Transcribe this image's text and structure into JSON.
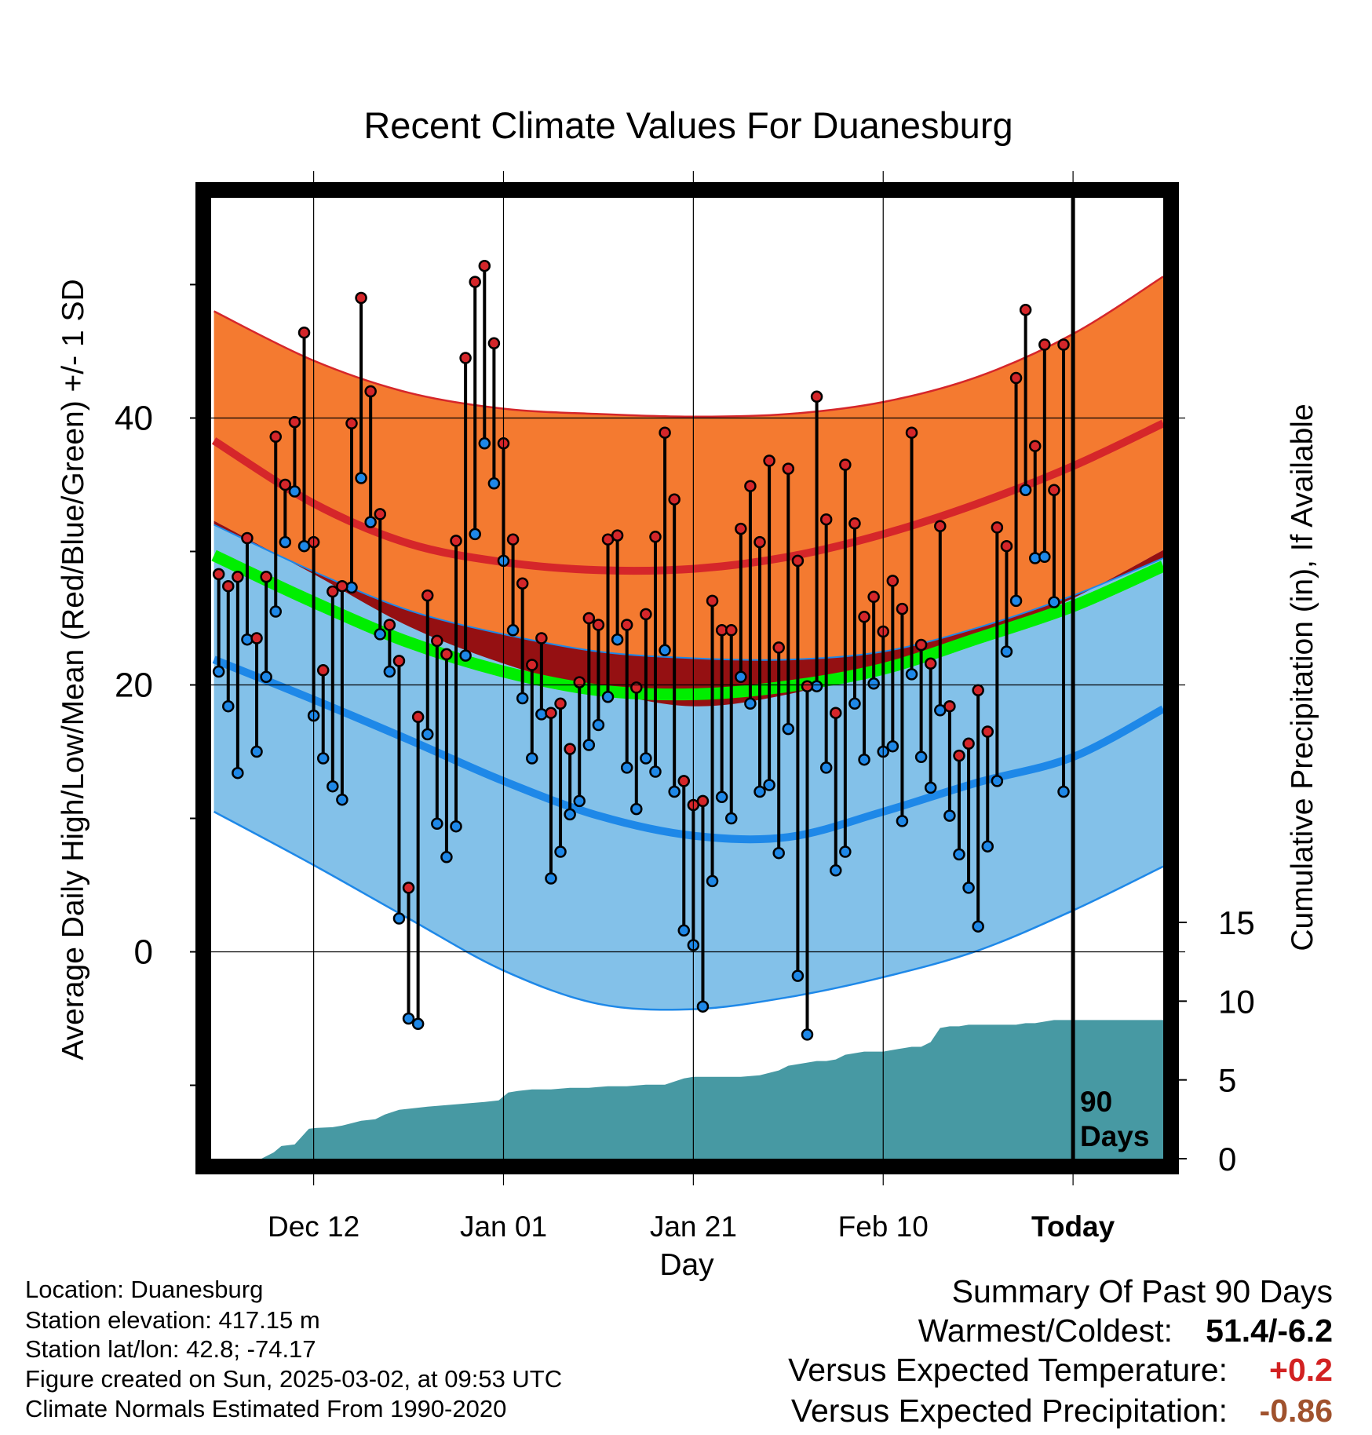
{
  "chart_data": {
    "type": "line",
    "title": "Recent Climate Values For Duanesburg",
    "xlabel": "Day",
    "ylabel": "Average Daily High/Low/Mean (Red/Blue/Green) +/- 1 SD",
    "y2label": "Cumulative Precipitation (in), If Available",
    "x_ticks": [
      {
        "day": 10,
        "label": "Dec 12"
      },
      {
        "day": 30,
        "label": "Jan 01"
      },
      {
        "day": 50,
        "label": "Jan 21"
      },
      {
        "day": 70,
        "label": "Feb 10"
      },
      {
        "day": 90,
        "label": "Today"
      }
    ],
    "xlim": [
      -0.8,
      99.5
    ],
    "ylim": [
      -15.5,
      56.5
    ],
    "y_ticks": [
      0,
      20,
      40
    ],
    "y_minor_ticks": [
      -10,
      10,
      30,
      50
    ],
    "y2lim": [
      0,
      61
    ],
    "y2_ticks": [
      0,
      5,
      10,
      15
    ],
    "today_label": "90 Days",
    "normals": {
      "days": [
        -0.5,
        10,
        20,
        30,
        40,
        50,
        60,
        70,
        80,
        90,
        99.5
      ],
      "high_mean": [
        38.3,
        33.6,
        30.6,
        29.2,
        28.6,
        28.7,
        29.6,
        31.3,
        33.6,
        36.4,
        39.6
      ],
      "high_upper": [
        48.0,
        44.3,
        41.9,
        40.7,
        40.3,
        40.1,
        40.3,
        41.2,
        43.1,
        46.3,
        50.6
      ],
      "high_lower": [
        32.3,
        28.3,
        24.4,
        21.6,
        19.6,
        18.4,
        19.3,
        21.3,
        23.5,
        26.5,
        30.1
      ],
      "low_mean": [
        21.9,
        18.9,
        15.9,
        12.8,
        10.2,
        8.7,
        8.6,
        10.5,
        12.7,
        14.6,
        18.2
      ],
      "low_upper": [
        32.0,
        28.5,
        25.6,
        23.8,
        22.5,
        22.0,
        21.9,
        22.5,
        24.3,
        26.7,
        29.5
      ],
      "low_lower": [
        10.5,
        6.5,
        2.5,
        -1.4,
        -3.9,
        -4.3,
        -3.4,
        -1.9,
        0.1,
        3.1,
        6.4
      ],
      "mean": [
        29.7,
        26.2,
        23.2,
        21.0,
        19.6,
        19.3,
        19.9,
        21.2,
        23.5,
        25.9,
        28.9
      ]
    },
    "series": [
      {
        "name": "high",
        "color": "#cc2222",
        "values": [
          28.3,
          27.4,
          28.1,
          31.0,
          23.5,
          28.1,
          38.6,
          35.0,
          39.7,
          46.4,
          30.7,
          21.1,
          27.0,
          27.4,
          39.6,
          49.0,
          42.0,
          32.8,
          24.5,
          21.8,
          4.8,
          17.6,
          26.7,
          23.3,
          22.3,
          30.8,
          44.5,
          50.2,
          51.4,
          45.6,
          38.1,
          30.9,
          27.6,
          21.5,
          23.5,
          17.9,
          18.6,
          15.2,
          20.2,
          25.0,
          24.5,
          30.9,
          31.2,
          24.5,
          19.8,
          25.3,
          31.1,
          38.9,
          33.9,
          12.8,
          11.0,
          11.3,
          26.3,
          24.1,
          24.1,
          31.7,
          34.9,
          30.7,
          36.8,
          22.8,
          36.2,
          29.3,
          19.9,
          41.6,
          32.4,
          17.9,
          36.5,
          32.1,
          25.1,
          26.6,
          24.0,
          27.8,
          25.7,
          38.9,
          23.0,
          21.6,
          31.9,
          18.4,
          14.7,
          15.6,
          19.6,
          16.5,
          31.8,
          30.4,
          43.0,
          48.1,
          37.9,
          45.5,
          34.6,
          45.5
        ]
      },
      {
        "name": "low",
        "color": "#2288dd",
        "values": [
          21.0,
          18.4,
          13.4,
          23.4,
          15.0,
          20.6,
          25.5,
          30.7,
          34.5,
          30.4,
          17.7,
          14.5,
          12.4,
          11.4,
          27.3,
          35.5,
          32.2,
          23.8,
          21.0,
          2.5,
          -5.0,
          -5.4,
          16.3,
          9.6,
          7.1,
          9.4,
          22.2,
          31.3,
          38.1,
          35.1,
          29.3,
          24.1,
          19.0,
          14.5,
          17.8,
          5.5,
          7.5,
          10.3,
          11.3,
          15.5,
          17.0,
          19.1,
          23.4,
          13.8,
          10.7,
          14.5,
          13.5,
          22.6,
          12.0,
          1.6,
          0.5,
          -4.1,
          5.3,
          11.6,
          10.0,
          20.6,
          18.6,
          12.0,
          12.5,
          7.4,
          16.7,
          -1.8,
          -6.2,
          19.9,
          13.8,
          6.1,
          7.5,
          18.6,
          14.4,
          20.1,
          15.0,
          15.4,
          9.8,
          20.8,
          14.6,
          12.3,
          18.1,
          10.2,
          7.3,
          4.8,
          1.9,
          7.9,
          12.8,
          22.5,
          26.3,
          34.6,
          29.5,
          29.6,
          26.2,
          12.0
        ]
      }
    ],
    "precip_cumulative": {
      "days": [
        -0.5,
        4.5,
        5.8,
        6.6,
        8,
        9.5,
        10.2,
        12,
        13,
        15,
        16.5,
        17.5,
        18.5,
        19,
        20.5,
        22,
        24,
        26,
        28,
        29.5,
        30.5,
        31.5,
        33,
        35,
        37,
        39,
        41,
        43,
        45,
        47,
        49,
        50,
        52,
        55,
        57,
        59,
        60,
        61,
        62,
        63,
        64,
        65,
        66,
        67,
        68,
        70,
        71,
        72,
        73,
        74,
        75,
        76,
        77,
        78,
        79,
        80,
        82,
        84,
        85,
        86,
        87,
        88,
        90,
        92,
        95,
        97,
        99.5
      ],
      "values": [
        0,
        0,
        0.4,
        0.8,
        0.9,
        1.9,
        1.95,
        2.0,
        2.1,
        2.4,
        2.5,
        2.8,
        3.0,
        3.1,
        3.2,
        3.3,
        3.4,
        3.5,
        3.6,
        3.7,
        4.2,
        4.3,
        4.4,
        4.4,
        4.5,
        4.5,
        4.6,
        4.6,
        4.7,
        4.7,
        5.1,
        5.2,
        5.2,
        5.2,
        5.3,
        5.6,
        5.9,
        6.0,
        6.1,
        6.2,
        6.2,
        6.3,
        6.6,
        6.7,
        6.8,
        6.8,
        6.9,
        7.0,
        7.1,
        7.1,
        7.4,
        8.3,
        8.4,
        8.4,
        8.5,
        8.5,
        8.5,
        8.5,
        8.6,
        8.6,
        8.7,
        8.8,
        8.8,
        8.8,
        8.8,
        8.8,
        8.8
      ]
    }
  },
  "info": {
    "location": "Location: Duanesburg",
    "elevation": "Station elevation: 417.15 m",
    "latlon": "Station lat/lon: 42.8; -74.17",
    "created": "Figure created on Sun, 2025-03-02, at 09:53 UTC",
    "normals": "Climate Normals Estimated From 1990-2020"
  },
  "summary": {
    "title": "Summary Of Past 90 Days",
    "warmest_label": "Warmest/Coldest:",
    "warmest_value": "51.4/-6.2",
    "temp_label": "Versus Expected Temperature:",
    "temp_value": "+0.2",
    "precip_label": "Versus Expected Precipitation:",
    "precip_value": "-0.86"
  },
  "colors": {
    "high_band": "#f47a30",
    "low_band": "#83c1e9",
    "overlap": "#951012",
    "mean": "#00ee00",
    "high_line": "#d5262a",
    "low_line": "#1e88e8",
    "precip": "#4799a3",
    "temp_diff": "#d22222",
    "precip_diff": "#a0522d"
  }
}
